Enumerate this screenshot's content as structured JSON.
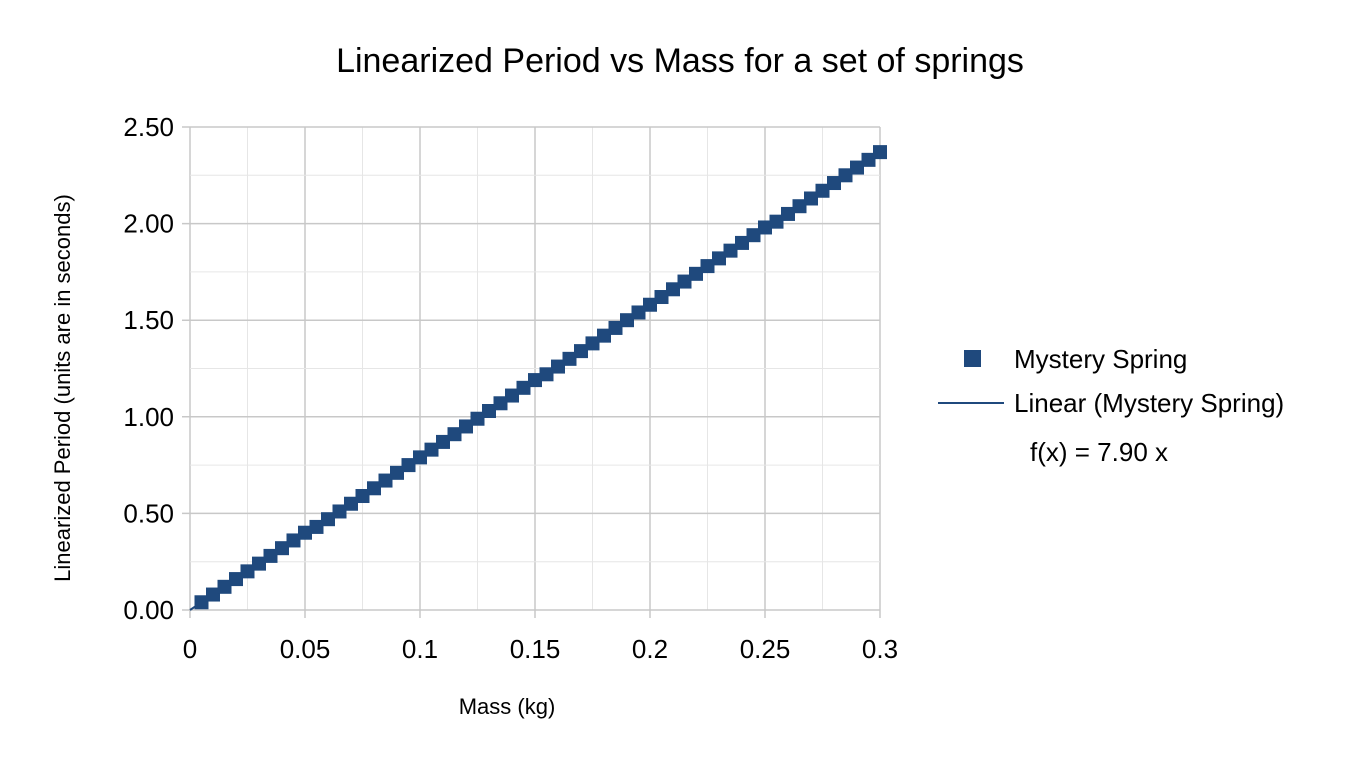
{
  "chart_data": {
    "type": "scatter",
    "title": "Linearized Period vs Mass for a set of springs",
    "xlabel": "Mass (kg)",
    "ylabel": "Linearized Period (units are in seconds)",
    "xlim": [
      0,
      0.3
    ],
    "ylim": [
      0,
      2.5
    ],
    "x_ticks": [
      "0",
      "0.05",
      "0.1",
      "0.15",
      "0.2",
      "0.25",
      "0.3"
    ],
    "y_ticks": [
      "0.00",
      "0.50",
      "1.00",
      "1.50",
      "2.00",
      "2.50"
    ],
    "grid": true,
    "legend_position": "right",
    "series": [
      {
        "name": "Mystery Spring",
        "color": "#1f497d",
        "marker": "square",
        "x": [
          0.005,
          0.01,
          0.015,
          0.02,
          0.025,
          0.03,
          0.035,
          0.04,
          0.045,
          0.05,
          0.055,
          0.06,
          0.065,
          0.07,
          0.075,
          0.08,
          0.085,
          0.09,
          0.095,
          0.1,
          0.105,
          0.11,
          0.115,
          0.12,
          0.125,
          0.13,
          0.135,
          0.14,
          0.145,
          0.15,
          0.155,
          0.16,
          0.165,
          0.17,
          0.175,
          0.18,
          0.185,
          0.19,
          0.195,
          0.2,
          0.205,
          0.21,
          0.215,
          0.22,
          0.225,
          0.23,
          0.235,
          0.24,
          0.245,
          0.25,
          0.255,
          0.26,
          0.265,
          0.27,
          0.275,
          0.28,
          0.285,
          0.29,
          0.295,
          0.3
        ],
        "y": [
          0.04,
          0.08,
          0.12,
          0.16,
          0.2,
          0.24,
          0.28,
          0.32,
          0.36,
          0.4,
          0.43,
          0.47,
          0.51,
          0.55,
          0.59,
          0.63,
          0.67,
          0.71,
          0.75,
          0.79,
          0.83,
          0.87,
          0.91,
          0.95,
          0.99,
          1.03,
          1.07,
          1.11,
          1.15,
          1.19,
          1.22,
          1.26,
          1.3,
          1.34,
          1.38,
          1.42,
          1.46,
          1.5,
          1.54,
          1.58,
          1.62,
          1.66,
          1.7,
          1.74,
          1.78,
          1.82,
          1.86,
          1.9,
          1.94,
          1.98,
          2.01,
          2.05,
          2.09,
          2.13,
          2.17,
          2.21,
          2.25,
          2.29,
          2.33,
          2.37
        ]
      }
    ],
    "trendline": {
      "name": "Linear (Mystery Spring)",
      "color": "#1f497d",
      "slope": 7.9,
      "equation": "f(x) = 7.90 x"
    }
  }
}
